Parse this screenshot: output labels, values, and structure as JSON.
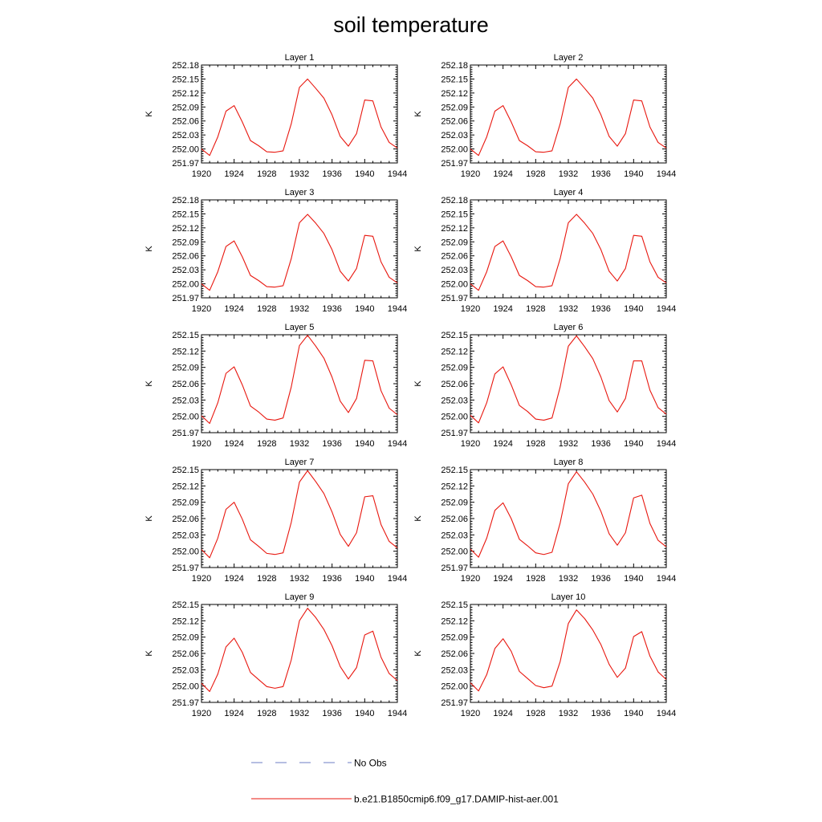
{
  "title": "soil temperature",
  "ylabel": "K",
  "colors": {
    "model": "#e8170f",
    "obs": "#6e7cc4",
    "axis": "#000000"
  },
  "legend": {
    "obs_label": "No Obs",
    "model_label": "b.e21.B1850cmip6.f09_g17.DAMIP-hist-aer.001"
  },
  "chart_data": [
    {
      "type": "line",
      "title": "Layer 1",
      "xlabel": "",
      "ylabel": "K",
      "xlim": [
        1920,
        1944
      ],
      "ylim": [
        251.97,
        252.18
      ],
      "xticks": [
        1920,
        1924,
        1928,
        1932,
        1936,
        1940,
        1944
      ],
      "ytick_labels": [
        "251.97",
        "252.00",
        "252.03",
        "252.06",
        "252.09",
        "252.12",
        "252.15",
        "252.18"
      ],
      "series": [
        {
          "name": "b.e21.B1850cmip6.f09_g17.DAMIP-hist-aer.001",
          "x": [
            1920,
            1921,
            1922,
            1923,
            1924,
            1925,
            1926,
            1927,
            1928,
            1929,
            1930,
            1931,
            1932,
            1933,
            1934,
            1935,
            1936,
            1937,
            1938,
            1939,
            1940,
            1941,
            1942,
            1943,
            1944
          ],
          "y": [
            252.0,
            251.986,
            252.026,
            252.081,
            252.093,
            252.058,
            252.018,
            252.007,
            251.994,
            251.993,
            251.996,
            252.054,
            252.132,
            252.15,
            252.13,
            252.109,
            252.073,
            252.027,
            252.006,
            252.033,
            252.105,
            252.103,
            252.047,
            252.014,
            252.002
          ]
        }
      ]
    },
    {
      "type": "line",
      "title": "Layer 2",
      "xlabel": "",
      "ylabel": "K",
      "xlim": [
        1920,
        1944
      ],
      "ylim": [
        251.97,
        252.18
      ],
      "xticks": [
        1920,
        1924,
        1928,
        1932,
        1936,
        1940,
        1944
      ],
      "ytick_labels": [
        "251.97",
        "252.00",
        "252.03",
        "252.06",
        "252.09",
        "252.12",
        "252.15",
        "252.18"
      ],
      "series": [
        {
          "name": "b.e21.B1850cmip6.f09_g17.DAMIP-hist-aer.001",
          "x": [
            1920,
            1921,
            1922,
            1923,
            1924,
            1925,
            1926,
            1927,
            1928,
            1929,
            1930,
            1931,
            1932,
            1933,
            1934,
            1935,
            1936,
            1937,
            1938,
            1939,
            1940,
            1941,
            1942,
            1943,
            1944
          ],
          "y": [
            252.0,
            251.986,
            252.026,
            252.081,
            252.093,
            252.058,
            252.018,
            252.007,
            251.994,
            251.993,
            251.996,
            252.054,
            252.132,
            252.15,
            252.13,
            252.109,
            252.073,
            252.027,
            252.006,
            252.033,
            252.105,
            252.103,
            252.047,
            252.014,
            252.002
          ]
        }
      ]
    },
    {
      "type": "line",
      "title": "Layer 3",
      "xlabel": "",
      "ylabel": "K",
      "xlim": [
        1920,
        1944
      ],
      "ylim": [
        251.97,
        252.18
      ],
      "xticks": [
        1920,
        1924,
        1928,
        1932,
        1936,
        1940,
        1944
      ],
      "ytick_labels": [
        "251.97",
        "252.00",
        "252.03",
        "252.06",
        "252.09",
        "252.12",
        "252.15",
        "252.18"
      ],
      "series": [
        {
          "name": "b.e21.B1850cmip6.f09_g17.DAMIP-hist-aer.001",
          "x": [
            1920,
            1921,
            1922,
            1923,
            1924,
            1925,
            1926,
            1927,
            1928,
            1929,
            1930,
            1931,
            1932,
            1933,
            1934,
            1935,
            1936,
            1937,
            1938,
            1939,
            1940,
            1941,
            1942,
            1943,
            1944
          ],
          "y": [
            252.0,
            251.986,
            252.026,
            252.08,
            252.092,
            252.058,
            252.018,
            252.007,
            251.994,
            251.993,
            251.996,
            252.054,
            252.131,
            252.149,
            252.13,
            252.108,
            252.073,
            252.027,
            252.006,
            252.033,
            252.104,
            252.102,
            252.047,
            252.014,
            252.002
          ]
        }
      ]
    },
    {
      "type": "line",
      "title": "Layer 4",
      "xlabel": "",
      "ylabel": "K",
      "xlim": [
        1920,
        1944
      ],
      "ylim": [
        251.97,
        252.18
      ],
      "xticks": [
        1920,
        1924,
        1928,
        1932,
        1936,
        1940,
        1944
      ],
      "ytick_labels": [
        "251.97",
        "252.00",
        "252.03",
        "252.06",
        "252.09",
        "252.12",
        "252.15",
        "252.18"
      ],
      "series": [
        {
          "name": "b.e21.B1850cmip6.f09_g17.DAMIP-hist-aer.001",
          "x": [
            1920,
            1921,
            1922,
            1923,
            1924,
            1925,
            1926,
            1927,
            1928,
            1929,
            1930,
            1931,
            1932,
            1933,
            1934,
            1935,
            1936,
            1937,
            1938,
            1939,
            1940,
            1941,
            1942,
            1943,
            1944
          ],
          "y": [
            252.0,
            251.986,
            252.026,
            252.08,
            252.092,
            252.058,
            252.018,
            252.007,
            251.994,
            251.993,
            251.996,
            252.054,
            252.131,
            252.149,
            252.13,
            252.108,
            252.073,
            252.027,
            252.006,
            252.033,
            252.104,
            252.102,
            252.047,
            252.014,
            252.002
          ]
        }
      ]
    },
    {
      "type": "line",
      "title": "Layer 5",
      "xlabel": "",
      "ylabel": "K",
      "xlim": [
        1920,
        1944
      ],
      "ylim": [
        251.97,
        252.15
      ],
      "xticks": [
        1920,
        1924,
        1928,
        1932,
        1936,
        1940,
        1944
      ],
      "ytick_labels": [
        "251.97",
        "252.00",
        "252.03",
        "252.06",
        "252.09",
        "252.12",
        "252.15"
      ],
      "series": [
        {
          "name": "b.e21.B1850cmip6.f09_g17.DAMIP-hist-aer.001",
          "x": [
            1920,
            1921,
            1922,
            1923,
            1924,
            1925,
            1926,
            1927,
            1928,
            1929,
            1930,
            1931,
            1932,
            1933,
            1934,
            1935,
            1936,
            1937,
            1938,
            1939,
            1940,
            1941,
            1942,
            1943,
            1944
          ],
          "y": [
            252.001,
            251.987,
            252.025,
            252.079,
            252.091,
            252.058,
            252.019,
            252.008,
            251.995,
            251.993,
            251.997,
            252.054,
            252.13,
            252.149,
            252.129,
            252.107,
            252.072,
            252.028,
            252.007,
            252.033,
            252.103,
            252.102,
            252.047,
            252.015,
            252.003
          ]
        }
      ]
    },
    {
      "type": "line",
      "title": "Layer 6",
      "xlabel": "",
      "ylabel": "K",
      "xlim": [
        1920,
        1944
      ],
      "ylim": [
        251.97,
        252.15
      ],
      "xticks": [
        1920,
        1924,
        1928,
        1932,
        1936,
        1940,
        1944
      ],
      "ytick_labels": [
        "251.97",
        "252.00",
        "252.03",
        "252.06",
        "252.09",
        "252.12",
        "252.15"
      ],
      "series": [
        {
          "name": "b.e21.B1850cmip6.f09_g17.DAMIP-hist-aer.001",
          "x": [
            1920,
            1921,
            1922,
            1923,
            1924,
            1925,
            1926,
            1927,
            1928,
            1929,
            1930,
            1931,
            1932,
            1933,
            1934,
            1935,
            1936,
            1937,
            1938,
            1939,
            1940,
            1941,
            1942,
            1943,
            1944
          ],
          "y": [
            252.002,
            251.988,
            252.025,
            252.078,
            252.091,
            252.058,
            252.02,
            252.009,
            251.995,
            251.993,
            251.997,
            252.054,
            252.129,
            252.148,
            252.128,
            252.106,
            252.072,
            252.029,
            252.008,
            252.033,
            252.102,
            252.102,
            252.048,
            252.016,
            252.004
          ]
        }
      ]
    },
    {
      "type": "line",
      "title": "Layer 7",
      "xlabel": "",
      "ylabel": "K",
      "xlim": [
        1920,
        1944
      ],
      "ylim": [
        251.97,
        252.15
      ],
      "xticks": [
        1920,
        1924,
        1928,
        1932,
        1936,
        1940,
        1944
      ],
      "ytick_labels": [
        "251.97",
        "252.00",
        "252.03",
        "252.06",
        "252.09",
        "252.12",
        "252.15"
      ],
      "series": [
        {
          "name": "b.e21.B1850cmip6.f09_g17.DAMIP-hist-aer.001",
          "x": [
            1920,
            1921,
            1922,
            1923,
            1924,
            1925,
            1926,
            1927,
            1928,
            1929,
            1930,
            1931,
            1932,
            1933,
            1934,
            1935,
            1936,
            1937,
            1938,
            1939,
            1940,
            1941,
            1942,
            1943,
            1944
          ],
          "y": [
            252.003,
            251.988,
            252.024,
            252.077,
            252.09,
            252.059,
            252.021,
            252.009,
            251.996,
            251.994,
            251.997,
            252.053,
            252.127,
            252.148,
            252.128,
            252.106,
            252.072,
            252.031,
            252.009,
            252.034,
            252.1,
            252.102,
            252.049,
            252.018,
            252.006
          ]
        }
      ]
    },
    {
      "type": "line",
      "title": "Layer 8",
      "xlabel": "",
      "ylabel": "K",
      "xlim": [
        1920,
        1944
      ],
      "ylim": [
        251.97,
        252.15
      ],
      "xticks": [
        1920,
        1924,
        1928,
        1932,
        1936,
        1940,
        1944
      ],
      "ytick_labels": [
        "251.97",
        "252.00",
        "252.03",
        "252.06",
        "252.09",
        "252.12",
        "252.15"
      ],
      "series": [
        {
          "name": "b.e21.B1850cmip6.f09_g17.DAMIP-hist-aer.001",
          "x": [
            1920,
            1921,
            1922,
            1923,
            1924,
            1925,
            1926,
            1927,
            1928,
            1929,
            1930,
            1931,
            1932,
            1933,
            1934,
            1935,
            1936,
            1937,
            1938,
            1939,
            1940,
            1941,
            1942,
            1943,
            1944
          ],
          "y": [
            252.004,
            251.989,
            252.024,
            252.075,
            252.089,
            252.06,
            252.022,
            252.01,
            251.997,
            251.994,
            251.998,
            252.052,
            252.124,
            252.146,
            252.127,
            252.105,
            252.073,
            252.032,
            252.011,
            252.034,
            252.098,
            252.103,
            252.051,
            252.02,
            252.008
          ]
        }
      ]
    },
    {
      "type": "line",
      "title": "Layer 9",
      "xlabel": "",
      "ylabel": "K",
      "xlim": [
        1920,
        1944
      ],
      "ylim": [
        251.97,
        252.15
      ],
      "xticks": [
        1920,
        1924,
        1928,
        1932,
        1936,
        1940,
        1944
      ],
      "ytick_labels": [
        "251.97",
        "252.00",
        "252.03",
        "252.06",
        "252.09",
        "252.12",
        "252.15"
      ],
      "series": [
        {
          "name": "b.e21.B1850cmip6.f09_g17.DAMIP-hist-aer.001",
          "x": [
            1920,
            1921,
            1922,
            1923,
            1924,
            1925,
            1926,
            1927,
            1928,
            1929,
            1930,
            1931,
            1932,
            1933,
            1934,
            1935,
            1936,
            1937,
            1938,
            1939,
            1940,
            1941,
            1942,
            1943,
            1944
          ],
          "y": [
            252.005,
            251.99,
            252.022,
            252.072,
            252.088,
            252.062,
            252.025,
            252.012,
            251.999,
            251.996,
            251.999,
            252.048,
            252.12,
            252.143,
            252.126,
            252.104,
            252.074,
            252.036,
            252.013,
            252.034,
            252.094,
            252.101,
            252.053,
            252.023,
            252.01
          ]
        }
      ]
    },
    {
      "type": "line",
      "title": "Layer 10",
      "xlabel": "",
      "ylabel": "K",
      "xlim": [
        1920,
        1944
      ],
      "ylim": [
        251.97,
        252.15
      ],
      "xticks": [
        1920,
        1924,
        1928,
        1932,
        1936,
        1940,
        1944
      ],
      "ytick_labels": [
        "251.97",
        "252.00",
        "252.03",
        "252.06",
        "252.09",
        "252.12",
        "252.15"
      ],
      "series": [
        {
          "name": "b.e21.B1850cmip6.f09_g17.DAMIP-hist-aer.001",
          "x": [
            1920,
            1921,
            1922,
            1923,
            1924,
            1925,
            1926,
            1927,
            1928,
            1929,
            1930,
            1931,
            1932,
            1933,
            1934,
            1935,
            1936,
            1937,
            1938,
            1939,
            1940,
            1941,
            1942,
            1943,
            1944
          ],
          "y": [
            252.006,
            251.991,
            252.021,
            252.069,
            252.087,
            252.064,
            252.027,
            252.014,
            252.001,
            251.997,
            252.0,
            252.045,
            252.115,
            252.14,
            252.124,
            252.103,
            252.076,
            252.04,
            252.016,
            252.033,
            252.091,
            252.1,
            252.055,
            252.026,
            252.012
          ]
        }
      ]
    }
  ]
}
